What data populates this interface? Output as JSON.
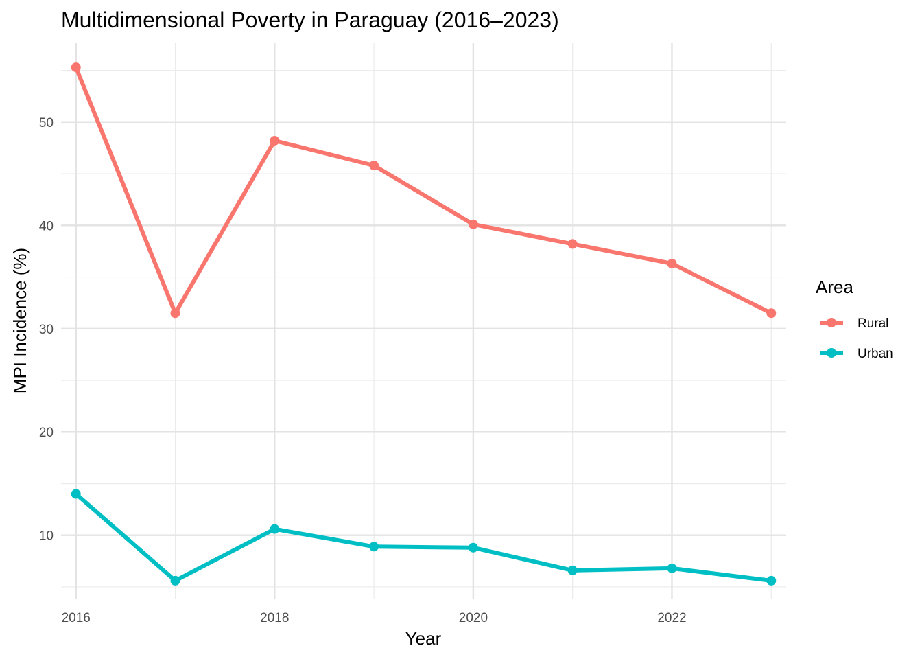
{
  "chart_data": {
    "type": "line",
    "title": "Multidimensional Poverty in Paraguay (2016–2023)",
    "xlabel": "Year",
    "ylabel": "MPI Incidence (%)",
    "x": [
      2016,
      2017,
      2018,
      2019,
      2020,
      2021,
      2022,
      2023
    ],
    "xlim": [
      2015.85,
      2023.15
    ],
    "ylim": [
      3.8,
      57.7
    ],
    "x_ticks": [
      2016,
      2018,
      2020,
      2022
    ],
    "x_tick_labels": [
      "2016",
      "2018",
      "2020",
      "2022"
    ],
    "y_ticks": [
      10,
      20,
      30,
      40,
      50
    ],
    "y_tick_labels": [
      "10",
      "20",
      "30",
      "40",
      "50"
    ],
    "grid": true,
    "legend": {
      "title": "Area",
      "position": "right"
    },
    "series": [
      {
        "name": "Rural",
        "color": "#F8766D",
        "values": [
          55.3,
          31.5,
          48.2,
          45.8,
          40.1,
          38.2,
          36.3,
          31.5
        ]
      },
      {
        "name": "Urban",
        "color": "#00BFC4",
        "values": [
          14.0,
          5.6,
          10.6,
          8.9,
          8.8,
          6.6,
          6.8,
          5.6
        ]
      }
    ]
  }
}
